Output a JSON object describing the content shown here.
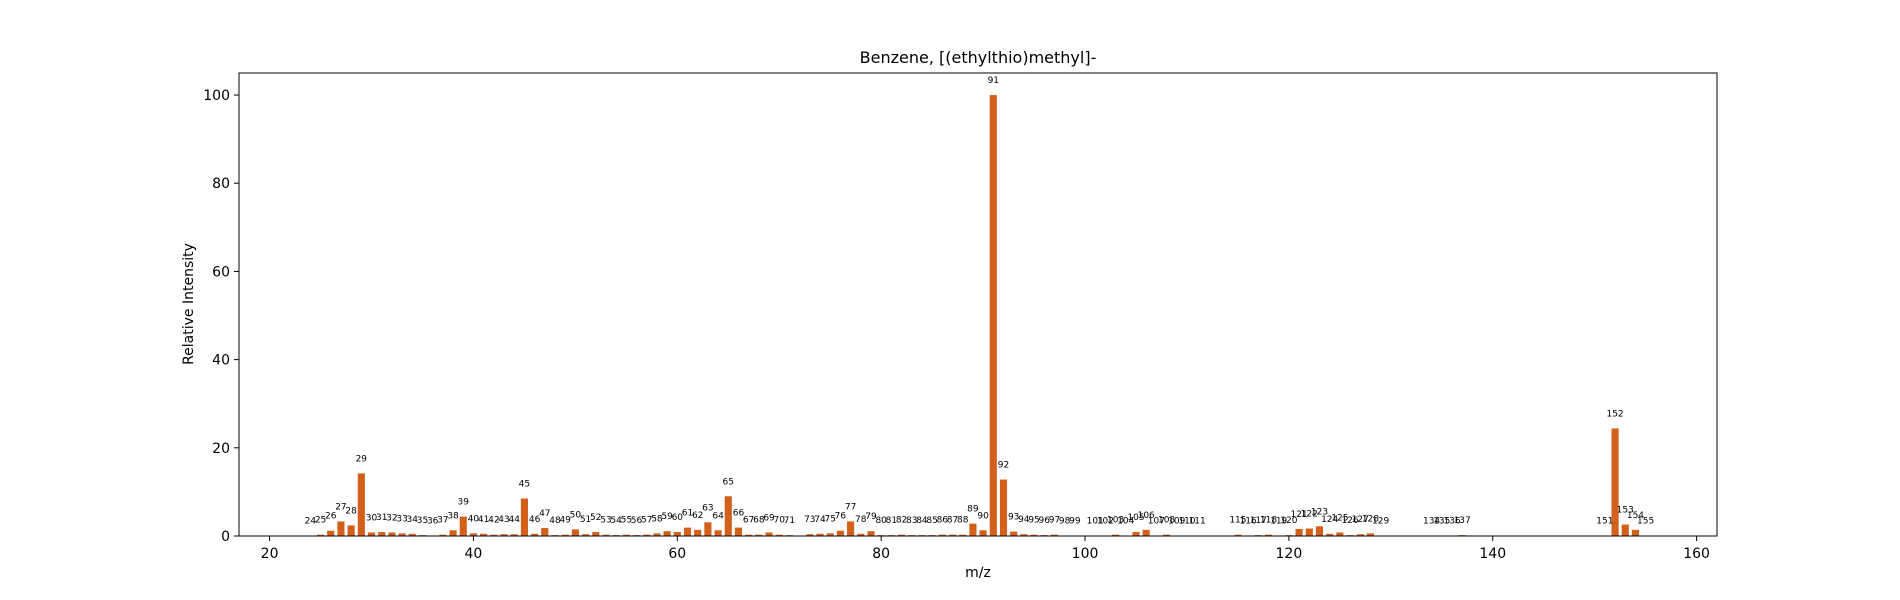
{
  "chart_data": {
    "type": "bar",
    "title": "Benzene, [(ethylthio)methyl]-",
    "xlabel": "m/z",
    "ylabel": "Relative Intensity",
    "xlim": [
      17,
      162
    ],
    "ylim": [
      0,
      105
    ],
    "xticks": [
      20,
      40,
      60,
      80,
      100,
      120,
      140,
      160
    ],
    "yticks": [
      0,
      20,
      40,
      60,
      80,
      100
    ],
    "grid": false,
    "bar_color": "#d2601a",
    "series": [
      {
        "x": [
          24,
          25,
          26,
          27,
          28,
          29,
          30,
          31,
          32,
          33,
          34,
          35,
          36,
          37,
          38,
          39,
          40,
          41,
          42,
          43,
          44,
          45,
          46,
          47,
          48,
          49,
          50,
          51,
          52,
          53,
          54,
          55,
          56,
          57,
          58,
          59,
          60,
          61,
          62,
          63,
          64,
          65,
          66,
          67,
          68,
          69,
          70,
          71,
          73,
          74,
          75,
          76,
          77,
          78,
          79,
          80,
          81,
          82,
          83,
          84,
          85,
          86,
          87,
          88,
          89,
          90,
          91,
          92,
          93,
          94,
          95,
          96,
          97,
          98,
          99,
          101,
          102,
          103,
          104,
          105,
          106,
          107,
          108,
          109,
          110,
          111,
          115,
          116,
          117,
          118,
          119,
          120,
          121,
          122,
          123,
          124,
          125,
          126,
          127,
          128,
          129,
          134,
          135,
          136,
          137,
          151,
          152,
          153,
          154,
          155
        ],
        "values": [
          0.1,
          0.3,
          1.2,
          3.3,
          2.4,
          14.2,
          0.8,
          0.9,
          0.8,
          0.6,
          0.5,
          0.2,
          0.1,
          0.3,
          1.3,
          4.4,
          0.6,
          0.5,
          0.3,
          0.4,
          0.4,
          8.5,
          0.5,
          1.8,
          0.2,
          0.3,
          1.5,
          0.4,
          0.9,
          0.3,
          0.2,
          0.3,
          0.2,
          0.3,
          0.6,
          1.1,
          0.9,
          1.9,
          1.4,
          3.1,
          1.3,
          9.0,
          1.9,
          0.3,
          0.3,
          0.8,
          0.3,
          0.2,
          0.4,
          0.5,
          0.6,
          1.2,
          3.3,
          0.5,
          1.1,
          0.2,
          0.2,
          0.3,
          0.2,
          0.2,
          0.2,
          0.3,
          0.3,
          0.3,
          2.8,
          1.3,
          100,
          12.8,
          1.0,
          0.4,
          0.3,
          0.2,
          0.3,
          0.1,
          0.1,
          0.1,
          0.1,
          0.3,
          0.1,
          0.9,
          1.4,
          0.1,
          0.3,
          0.1,
          0.1,
          0.1,
          0.3,
          0.1,
          0.2,
          0.3,
          0.1,
          0.2,
          1.6,
          1.7,
          2.2,
          0.5,
          0.8,
          0.2,
          0.4,
          0.6,
          0.1,
          0.1,
          0.1,
          0.1,
          0.2,
          0.1,
          24.4,
          2.6,
          1.4,
          0.1
        ],
        "labels": [
          "24",
          "25",
          "26",
          "27",
          "28",
          "29",
          "30",
          "31",
          "32",
          "33",
          "34",
          "35",
          "36",
          "37",
          "38",
          "39",
          "40",
          "41",
          "42",
          "43",
          "44",
          "45",
          "46",
          "47",
          "48",
          "49",
          "50",
          "51",
          "52",
          "53",
          "54",
          "55",
          "56",
          "57",
          "58",
          "59",
          "60",
          "61",
          "62",
          "63",
          "64",
          "65",
          "66",
          "67",
          "68",
          "69",
          "70",
          "71",
          "73",
          "74",
          "75",
          "76",
          "77",
          "78",
          "79",
          "80",
          "81",
          "82",
          "83",
          "84",
          "85",
          "86",
          "87",
          "88",
          "89",
          "90",
          "91",
          "92",
          "93",
          "94",
          "95",
          "96",
          "97",
          "98",
          "99",
          "101",
          "102",
          "103",
          "104",
          "105",
          "106",
          "107",
          "108",
          "109",
          "110",
          "111",
          "115",
          "116",
          "117",
          "118",
          "119",
          "120",
          "121",
          "122",
          "123",
          "124",
          "125",
          "126",
          "127",
          "128",
          "129",
          "134",
          "135",
          "136",
          "137",
          "151",
          "152",
          "153",
          "154",
          "155"
        ]
      }
    ]
  }
}
